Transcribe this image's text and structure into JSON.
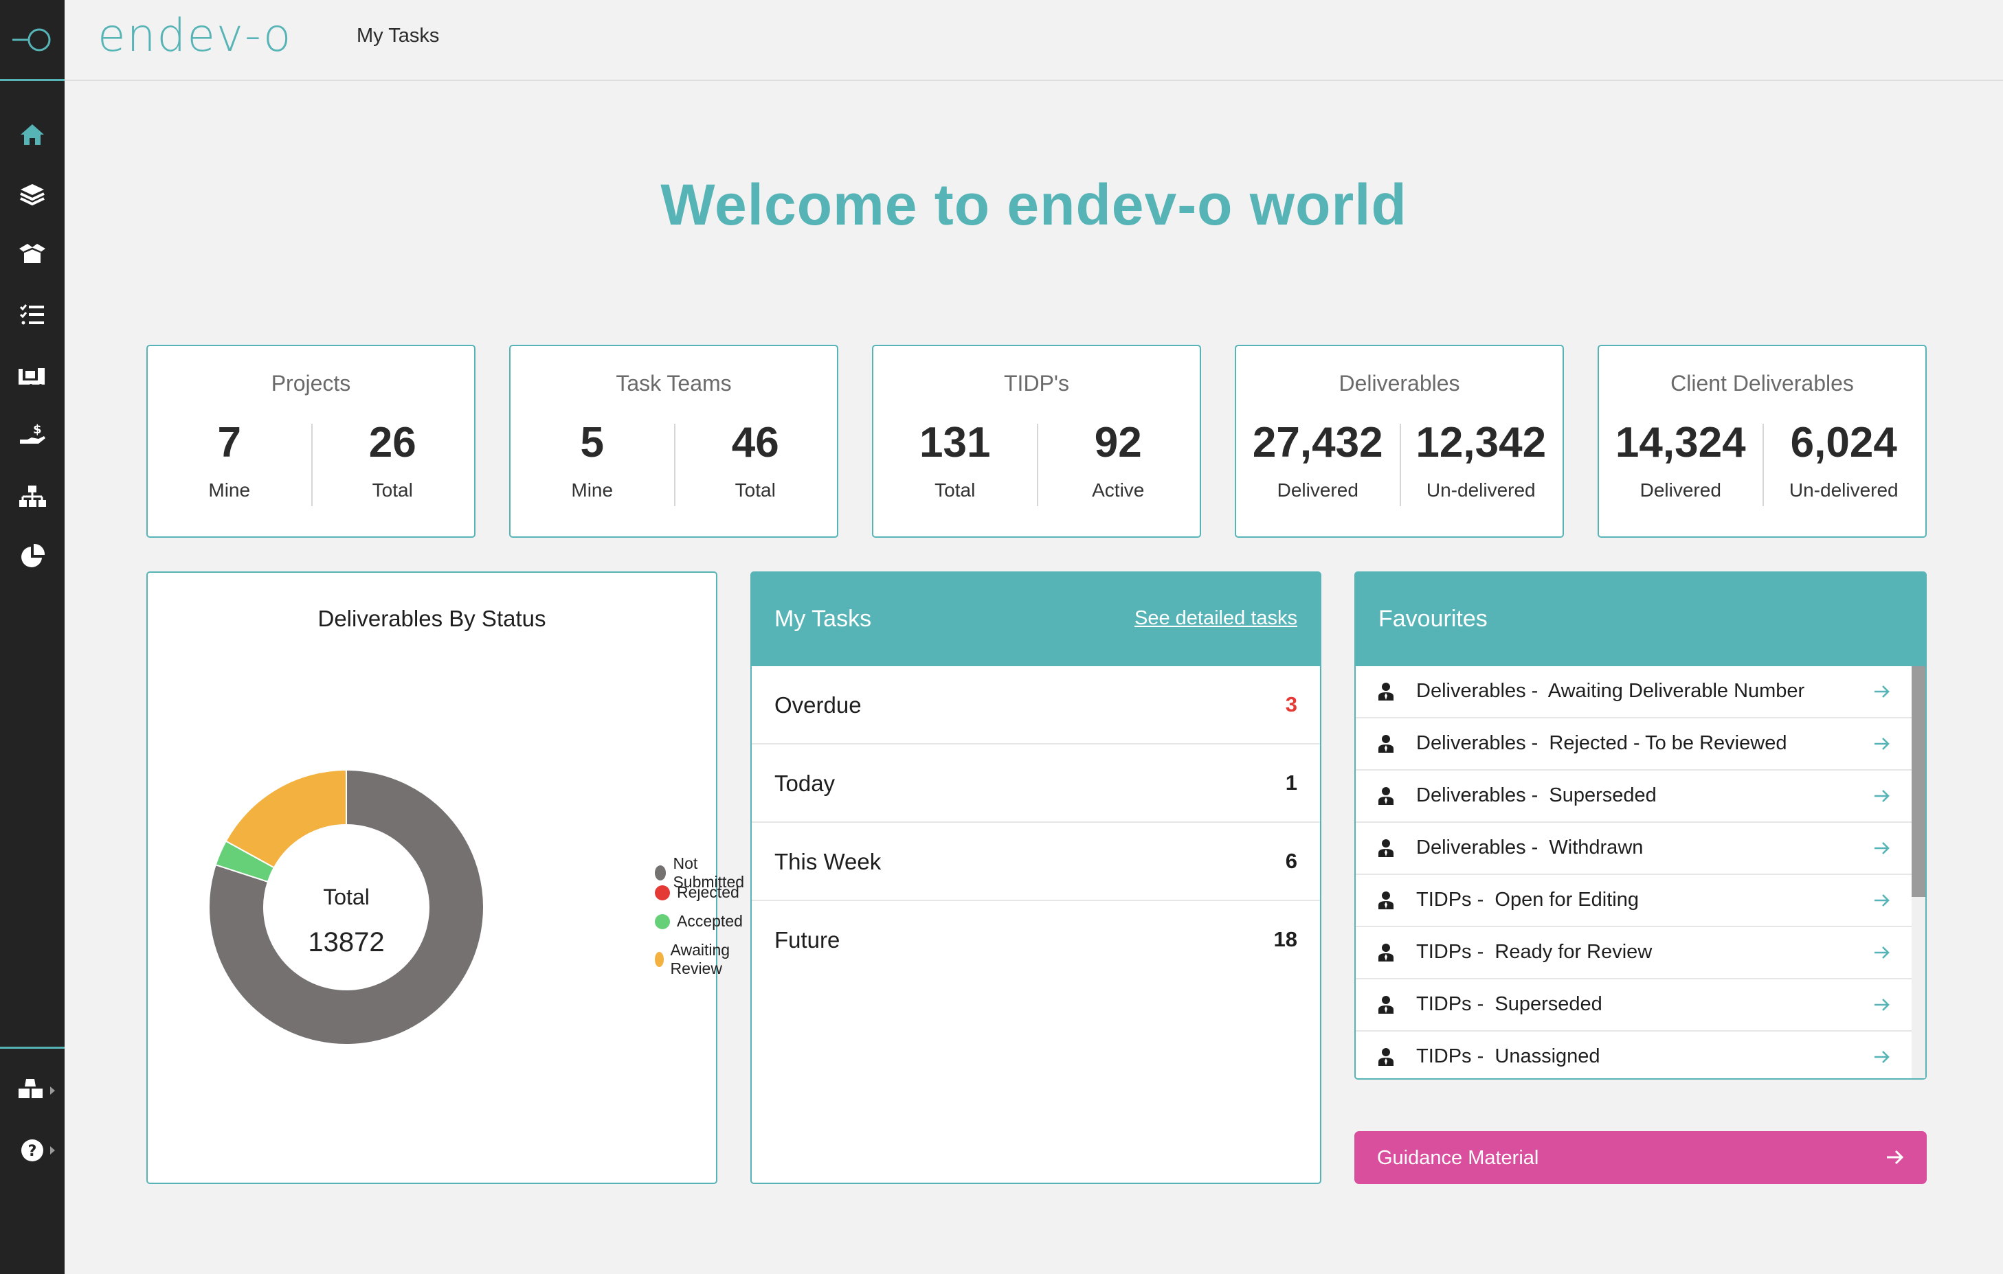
{
  "app": {
    "brand": "endev-o",
    "header_title": "My Tasks",
    "welcome": "Welcome to endev-o world"
  },
  "colors": {
    "accent": "#56b4b7",
    "sidebar": "#232323",
    "guidance": "#d94f9d",
    "overdue": "#e53935"
  },
  "sidebar": {
    "items": [
      {
        "icon": "home-icon"
      },
      {
        "icon": "layers-icon"
      },
      {
        "icon": "box-icon"
      },
      {
        "icon": "checklist-icon"
      },
      {
        "icon": "delivery-truck-icon"
      },
      {
        "icon": "money-hand-icon"
      },
      {
        "icon": "org-chart-icon"
      },
      {
        "icon": "pie-chart-icon"
      }
    ],
    "bottom": [
      {
        "icon": "cubes-icon"
      },
      {
        "icon": "help-icon"
      }
    ]
  },
  "stats": [
    {
      "title": "Projects",
      "a_value": "7",
      "a_label": "Mine",
      "b_value": "26",
      "b_label": "Total"
    },
    {
      "title": "Task Teams",
      "a_value": "5",
      "a_label": "Mine",
      "b_value": "46",
      "b_label": "Total"
    },
    {
      "title": "TIDP's",
      "a_value": "131",
      "a_label": "Total",
      "b_value": "92",
      "b_label": "Active"
    },
    {
      "title": "Deliverables",
      "a_value": "27,432",
      "a_label": "Delivered",
      "b_value": "12,342",
      "b_label": "Un-delivered"
    },
    {
      "title": "Client Deliverables",
      "a_value": "14,324",
      "a_label": "Delivered",
      "b_value": "6,024",
      "b_label": "Un-delivered"
    }
  ],
  "chart_data": {
    "type": "pie",
    "title": "Deliverables By Status",
    "center_label": "Total",
    "center_value": "13872",
    "legend_position": "right",
    "slices": [
      {
        "name": "Not Submitted",
        "value": 80,
        "color": "#747170"
      },
      {
        "name": "Rejected",
        "value": 0,
        "color": "#e53935"
      },
      {
        "name": "Accepted",
        "value": 3,
        "color": "#66d079"
      },
      {
        "name": "Awaiting Review",
        "value": 17,
        "color": "#f3b13f"
      }
    ]
  },
  "my_tasks": {
    "title": "My Tasks",
    "link": "See detailed tasks",
    "rows": [
      {
        "label": "Overdue",
        "count": "3"
      },
      {
        "label": "Today",
        "count": "1"
      },
      {
        "label": "This Week",
        "count": "6"
      },
      {
        "label": "Future",
        "count": "18"
      }
    ]
  },
  "favourites": {
    "title": "Favourites",
    "items": [
      {
        "text": "Deliverables -  Awaiting Deliverable Number"
      },
      {
        "text": "Deliverables -  Rejected - To be Reviewed"
      },
      {
        "text": "Deliverables -  Superseded"
      },
      {
        "text": "Deliverables -  Withdrawn"
      },
      {
        "text": "TIDPs -  Open for Editing"
      },
      {
        "text": "TIDPs -  Ready for Review"
      },
      {
        "text": "TIDPs -  Superseded"
      },
      {
        "text": "TIDPs -  Unassigned"
      }
    ]
  },
  "guidance": {
    "label": "Guidance Material"
  }
}
